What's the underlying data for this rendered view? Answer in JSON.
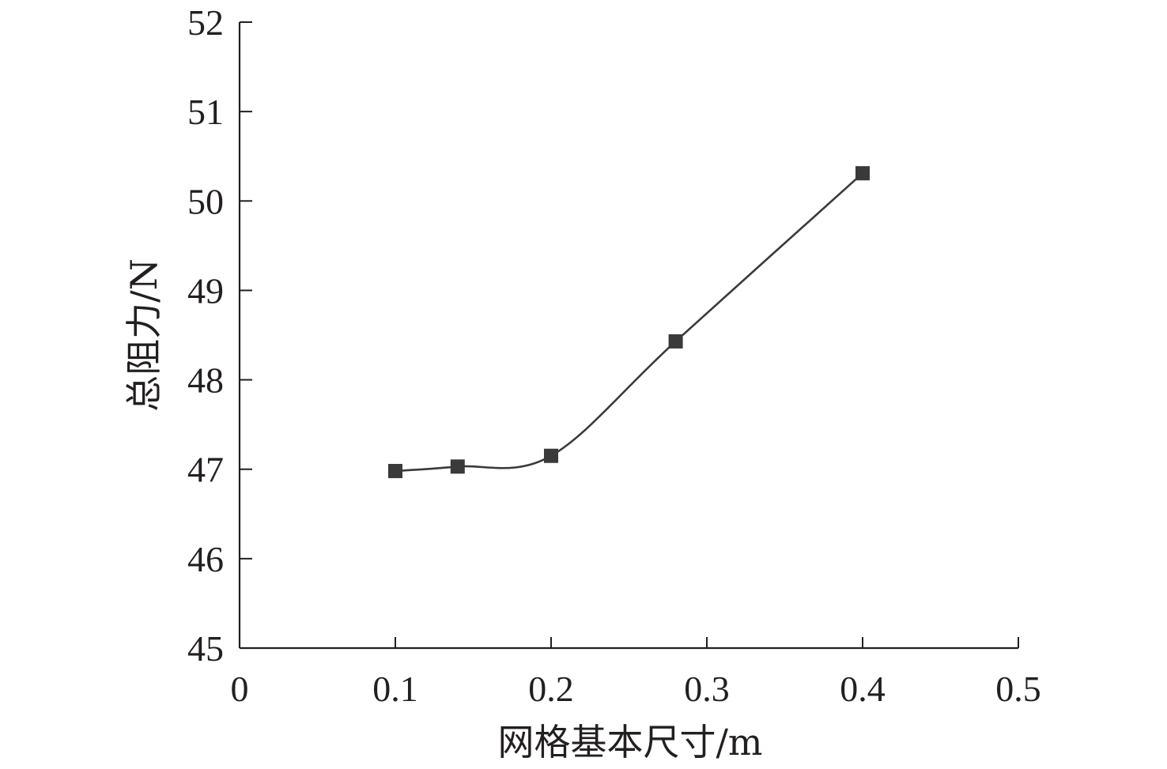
{
  "chart_data": {
    "type": "line",
    "title": "",
    "xlabel": "网格基本尺寸/m",
    "ylabel": "总阻力/N",
    "xlim": [
      0,
      0.5
    ],
    "ylim": [
      45,
      52
    ],
    "xticks": [
      0,
      0.1,
      0.2,
      0.3,
      0.4,
      0.5
    ],
    "xtick_labels": [
      "0",
      "0.1",
      "0.2",
      "0.3",
      "0.4",
      "0.5"
    ],
    "yticks": [
      45,
      46,
      47,
      48,
      49,
      50,
      51,
      52
    ],
    "ytick_labels": [
      "45",
      "46",
      "47",
      "48",
      "49",
      "50",
      "51",
      "52"
    ],
    "grid": false,
    "smooth": true,
    "marker": "square",
    "color": "#3a3a3a",
    "series": [
      {
        "x": [
          0.1,
          0.14,
          0.2,
          0.28,
          0.4
        ],
        "y": [
          46.98,
          47.03,
          47.15,
          48.43,
          50.31
        ]
      }
    ]
  }
}
